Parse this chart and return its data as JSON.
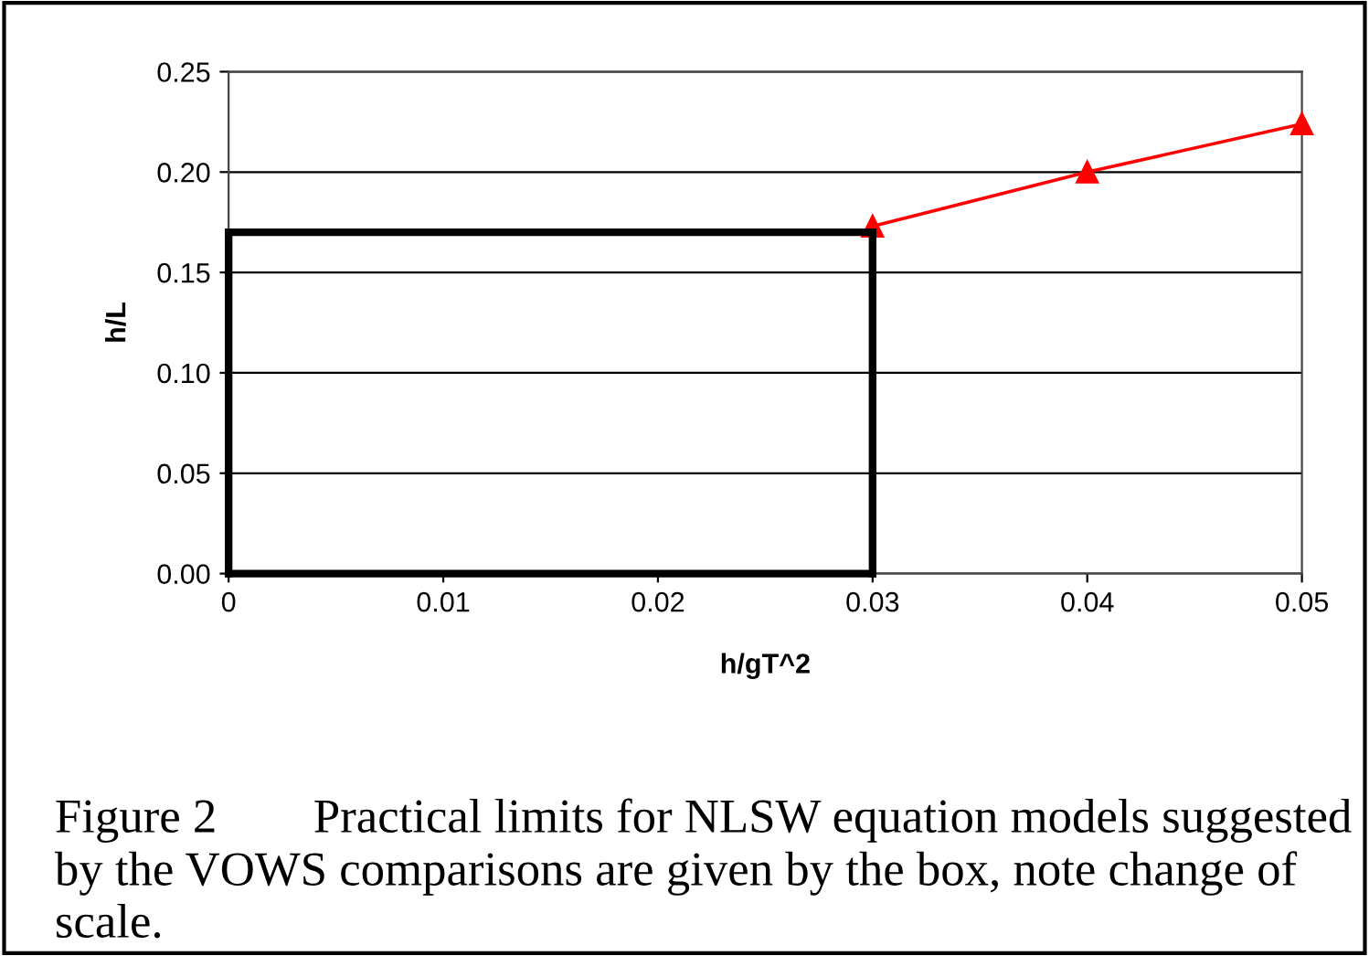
{
  "chart_data": {
    "type": "line",
    "xlabel": "h/gT^2",
    "ylabel": "h/L",
    "xlim": [
      0,
      0.05
    ],
    "xticks": [
      {
        "value": 0,
        "label": "0"
      },
      0.01,
      0.02,
      0.03,
      0.04,
      0.05
    ],
    "ylim": [
      0,
      0.25
    ],
    "yticks": [
      {
        "value": 0,
        "label": "0.00"
      },
      {
        "value": 0.05,
        "label": "0.05"
      },
      {
        "value": 0.1,
        "label": "0.10"
      },
      {
        "value": 0.15,
        "label": "0.15"
      },
      {
        "value": 0.2,
        "label": "0.20"
      },
      {
        "value": 0.25,
        "label": "0.25"
      }
    ],
    "grid": "y",
    "series": [
      {
        "color": "#ff0000",
        "marker": "triangle",
        "x": [
          0.03,
          0.04,
          0.05
        ],
        "values": [
          0.173,
          0.2,
          0.224
        ]
      },
      {
        "color": "#000000",
        "marker": "none",
        "x": [
          0,
          0.03
        ],
        "values": [
          0.17,
          0.17
        ]
      },
      {
        "color": "#000000",
        "marker": "none",
        "x": [
          0,
          0.03
        ],
        "values": [
          0,
          0
        ],
        "errors": [
          [
            0,
            0.17
          ],
          [
            0,
            0.17
          ]
        ]
      }
    ],
    "annotations": [
      "Figure 2        Practical limits for NLSW equation models suggested by the VOWS comparisons are given by the box, note change of scale."
    ]
  }
}
